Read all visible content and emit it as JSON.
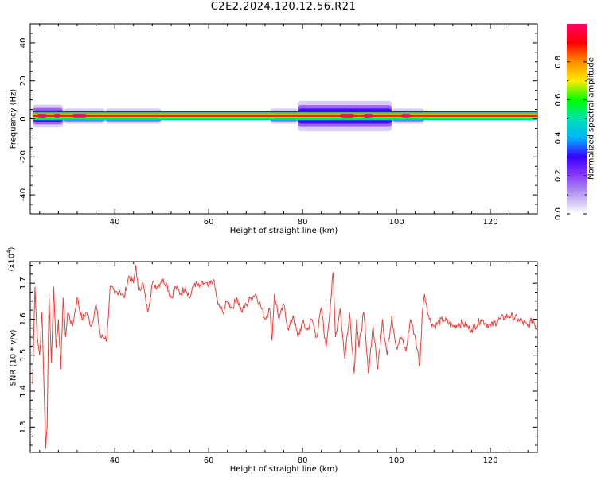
{
  "page": {
    "title": "C2E2.2024.120.12.56.R21"
  },
  "colors": {
    "snr_line": "#e8403a",
    "background": "#ffffff",
    "colormap": [
      "#ffffff",
      "#b9a2f0",
      "#8a3df5",
      "#3a00ff",
      "#00b4ff",
      "#00e0b0",
      "#00ff00",
      "#ffea00",
      "#ff8c00",
      "#ff0000",
      "#ff0066"
    ]
  },
  "chart_data": [
    {
      "type": "heatmap",
      "title": "",
      "xlabel": "Height of straight line (km)",
      "ylabel": "Frequency (Hz)",
      "xlim": [
        22,
        130
      ],
      "ylim": [
        -50,
        50
      ],
      "xticks": [
        40,
        60,
        80,
        100,
        120
      ],
      "yticks": [
        40,
        20,
        0,
        -20,
        -40
      ],
      "xtick_labels": [
        "40",
        "60",
        "80",
        "100",
        "120"
      ],
      "ytick_labels": [
        "40",
        "20",
        "0",
        "-20",
        "-40"
      ],
      "band": {
        "center_hz": 1.5,
        "core_halfwidth_hz": 1.5,
        "halo": [
          {
            "x": [
              22.5,
              29
            ],
            "halfwidth_hz": 6
          },
          {
            "x": [
              29,
              38
            ],
            "halfwidth_hz": 4
          },
          {
            "x": [
              38,
              50
            ],
            "halfwidth_hz": 4
          },
          {
            "x": [
              50,
              73
            ],
            "halfwidth_hz": 2.5
          },
          {
            "x": [
              73,
              79
            ],
            "halfwidth_hz": 4
          },
          {
            "x": [
              79,
              99
            ],
            "halfwidth_hz": 8
          },
          {
            "x": [
              99,
              106
            ],
            "halfwidth_hz": 4
          },
          {
            "x": [
              106,
              130
            ],
            "halfwidth_hz": 2.5
          }
        ],
        "hotspots": [
          {
            "x": [
              23.5,
              25.5
            ],
            "level": 0.95
          },
          {
            "x": [
              27,
              28.5
            ],
            "level": 0.95
          },
          {
            "x": [
              31,
              34
            ],
            "level": 0.95
          },
          {
            "x": [
              88,
              91
            ],
            "level": 0.95
          },
          {
            "x": [
              93,
              95
            ],
            "level": 0.95
          },
          {
            "x": [
              101,
              103
            ],
            "level": 0.95
          }
        ]
      }
    },
    {
      "type": "colorbar",
      "label": "Normalized spectral amplitude",
      "range": [
        0.0,
        1.0
      ],
      "ticks": [
        0.0,
        0.2,
        0.4,
        0.6,
        0.8
      ],
      "tick_labels": [
        "0.0",
        "0.2",
        "0.4",
        "0.6",
        "0.8"
      ]
    },
    {
      "type": "line",
      "title": "",
      "xlabel": "Height of straight line (km)",
      "ylabel": "SNR (10 * v/v)",
      "y_multiplier_label": "(x10",
      "y_multiplier_exp": "4",
      "xlim": [
        22,
        130
      ],
      "ylim": [
        1.23,
        1.76
      ],
      "xticks": [
        40,
        60,
        80,
        100,
        120
      ],
      "yticks": [
        1.3,
        1.4,
        1.5,
        1.6,
        1.7
      ],
      "xtick_labels": [
        "40",
        "60",
        "80",
        "100",
        "120"
      ],
      "ytick_labels": [
        "1.3",
        "1.4",
        "1.5",
        "1.6",
        "1.7"
      ],
      "series": [
        {
          "x": [
            22.5,
            23,
            23.5,
            24,
            24.5,
            25,
            25.3,
            25.6,
            26,
            26.5,
            27,
            27.5,
            28,
            28.5,
            29,
            29.5,
            30,
            31,
            32,
            33,
            34,
            35,
            36,
            37,
            38,
            38.3,
            39,
            40,
            41,
            42,
            43,
            44,
            44.5,
            45,
            46,
            47,
            48,
            49,
            50,
            51,
            52,
            53,
            54,
            55,
            56,
            57,
            58,
            59,
            60,
            61,
            62,
            63,
            64,
            65,
            66,
            67,
            68,
            69,
            70,
            71,
            72,
            73,
            73.5,
            74,
            75,
            76,
            77,
            78,
            79,
            80,
            81,
            82,
            83,
            84,
            85,
            86,
            86.5,
            87,
            88,
            89,
            90,
            91,
            91.5,
            92,
            93,
            94,
            95,
            96,
            97,
            98,
            99,
            100,
            101,
            102,
            103,
            104,
            105,
            105.5,
            106,
            107,
            108,
            110,
            112,
            114,
            116,
            118,
            120,
            122,
            124,
            126,
            128,
            129,
            130
          ],
          "y": [
            1.42,
            1.69,
            1.55,
            1.5,
            1.62,
            1.38,
            1.24,
            1.3,
            1.67,
            1.48,
            1.69,
            1.52,
            1.6,
            1.46,
            1.66,
            1.55,
            1.62,
            1.58,
            1.66,
            1.6,
            1.62,
            1.58,
            1.64,
            1.55,
            1.55,
            1.54,
            1.69,
            1.67,
            1.68,
            1.66,
            1.72,
            1.7,
            1.75,
            1.68,
            1.7,
            1.62,
            1.7,
            1.69,
            1.71,
            1.7,
            1.66,
            1.69,
            1.67,
            1.69,
            1.66,
            1.7,
            1.69,
            1.7,
            1.69,
            1.71,
            1.64,
            1.62,
            1.65,
            1.63,
            1.66,
            1.62,
            1.64,
            1.66,
            1.67,
            1.64,
            1.6,
            1.63,
            1.54,
            1.67,
            1.6,
            1.64,
            1.57,
            1.61,
            1.55,
            1.59,
            1.57,
            1.6,
            1.55,
            1.63,
            1.52,
            1.65,
            1.73,
            1.55,
            1.63,
            1.49,
            1.62,
            1.45,
            1.6,
            1.52,
            1.62,
            1.45,
            1.58,
            1.46,
            1.6,
            1.5,
            1.61,
            1.52,
            1.55,
            1.51,
            1.6,
            1.55,
            1.47,
            1.62,
            1.67,
            1.6,
            1.58,
            1.6,
            1.58,
            1.59,
            1.57,
            1.6,
            1.58,
            1.6,
            1.61,
            1.6,
            1.58,
            1.6,
            1.57
          ]
        }
      ]
    }
  ]
}
